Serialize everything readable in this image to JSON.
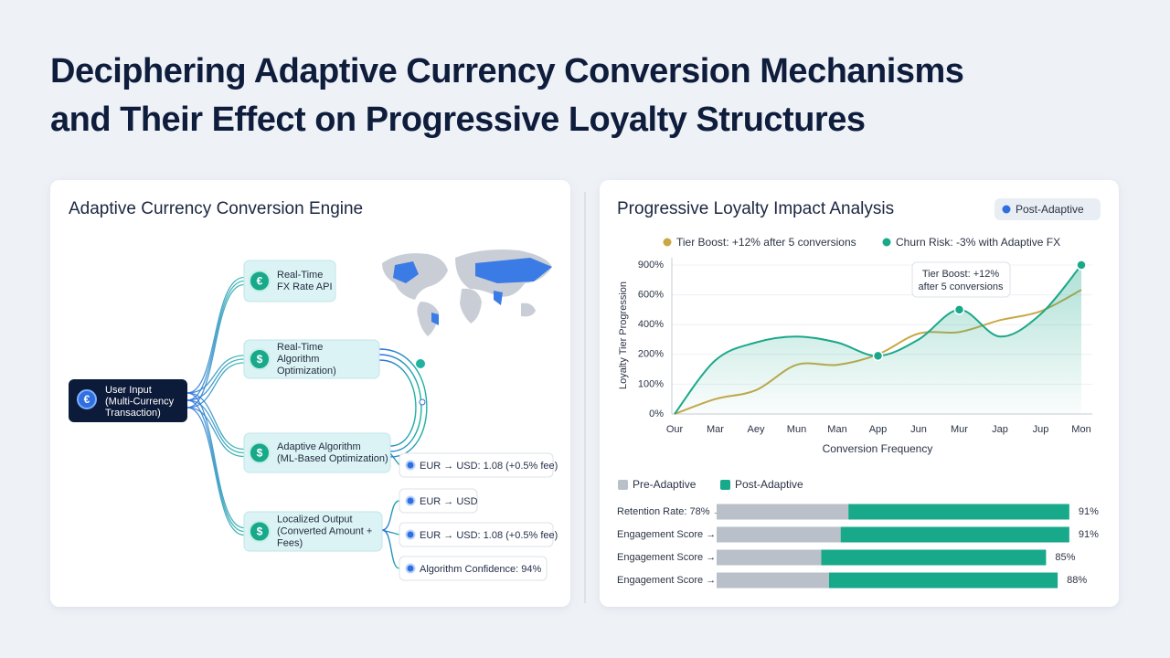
{
  "header": {
    "title_lines": [
      "Deciphering Adaptive Currency Conversion Mechanisms",
      "and Their Effect on Progressive Loyalty Structures"
    ]
  },
  "diagram": {
    "title": "Adaptive Currency Conversion Engine",
    "input": {
      "icon": "€",
      "lines": [
        "User Input",
        "(Multi-Currency",
        "Transaction)"
      ]
    },
    "nodes": [
      {
        "icon": "€",
        "lines": [
          "Real-Time",
          "FX Rate API"
        ]
      },
      {
        "icon": "$",
        "lines": [
          "Real-Time",
          "Algorithm",
          "Optimization)"
        ]
      },
      {
        "icon": "$",
        "lines": [
          "Adaptive Algorithm",
          "(ML-Based Optimization)"
        ]
      },
      {
        "icon": "$",
        "lines": [
          "Localized Output",
          "(Converted Amount +",
          "Fees)"
        ]
      }
    ],
    "chips": [
      "EUR → USD: 1.08 (+0.5% fee)",
      "EUR → USD",
      "EUR → USD: 1.08 (+0.5% fee)",
      "Algorithm Confidence: 94%"
    ]
  },
  "chart_data": [
    {
      "type": "line",
      "title": "Progressive Loyalty Impact Analysis",
      "badge": "Post-Adaptive",
      "categories": [
        "Our",
        "Mar",
        "Aey",
        "Mun",
        "Man",
        "App",
        "Jun",
        "Mur",
        "Jap",
        "Jup",
        "Mon"
      ],
      "series": [
        {
          "name": "Tier Boost: +12% after 5 conversions",
          "color": "#c9a845",
          "values": [
            0,
            50,
            80,
            165,
            165,
            200,
            340,
            350,
            430,
            490,
            650
          ]
        },
        {
          "name": "Churn Risk: -3% with Adaptive FX",
          "color": "#1aa88a",
          "values": [
            0,
            180,
            280,
            320,
            280,
            195,
            300,
            500,
            320,
            470,
            900
          ],
          "area": true,
          "marked_points": [
            5,
            7,
            10
          ]
        }
      ],
      "ylim": [
        0,
        900
      ],
      "yticks": [
        {
          "value": 0,
          "label": "0%"
        },
        {
          "value": 100,
          "label": "100%"
        },
        {
          "value": 200,
          "label": "200%"
        },
        {
          "value": 400,
          "label": "400%"
        },
        {
          "value": 600,
          "label": "600%"
        },
        {
          "value": 900,
          "label": "900%"
        }
      ],
      "x_label": "Conversion Frequency",
      "y_label": "Loyalty Tier Progression",
      "annotation": [
        "Tier Boost: +12%",
        "after 5 conversions"
      ],
      "grid": true
    },
    {
      "type": "bar",
      "orientation": "horizontal",
      "stacked": true,
      "categories": [
        "Retention Rate: 78% →",
        "Engagement Score →",
        "Engagement Score →",
        "Engagement Score →"
      ],
      "series": [
        {
          "name": "Pre-Adaptive",
          "color": "#b9c0c9",
          "values": [
            34,
            32,
            27,
            29
          ]
        },
        {
          "name": "Post-Adaptive",
          "color": "#17a98a",
          "values": [
            57,
            59,
            58,
            59
          ]
        }
      ],
      "total_labels": [
        "91%",
        "91%",
        "85%",
        "88%"
      ],
      "xlim": [
        0,
        100
      ]
    }
  ]
}
